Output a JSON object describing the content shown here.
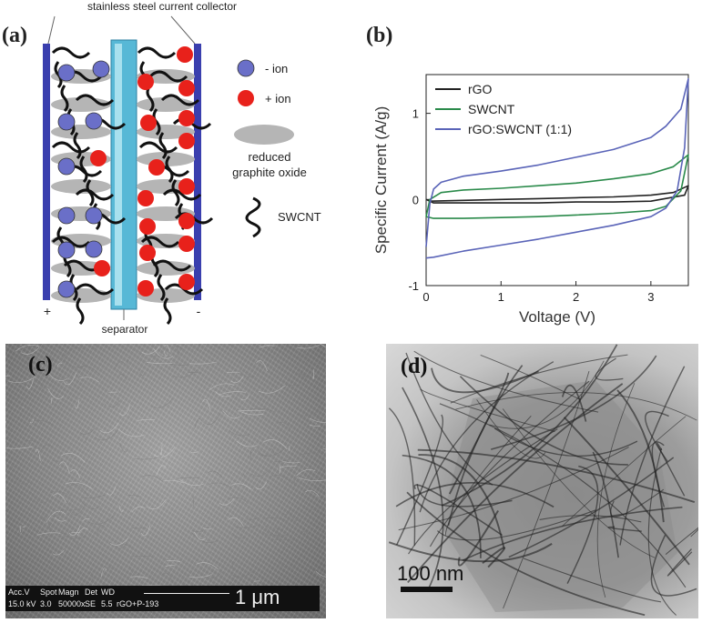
{
  "panel_a": {
    "label": "(a)",
    "collector_label": "stainless steel current collector",
    "separator_label": "separator",
    "plus_sign": "+",
    "minus_sign": "-",
    "legend": [
      {
        "text": "- ion",
        "icon": "negative-ion-sphere",
        "color": "#6a6fc8"
      },
      {
        "text": "+ ion",
        "icon": "positive-ion-sphere",
        "color": "#e8211b"
      },
      {
        "text": "reduced\ngraphite oxide",
        "icon": "graphite-oxide-ellipse",
        "color": "#b5b5b5"
      },
      {
        "text": "SWCNT",
        "icon": "swcnt-squiggle",
        "color": "#111111"
      }
    ],
    "legend_lines": [
      "- ion",
      "+ ion",
      "reduced",
      "graphite oxide",
      "SWCNT"
    ]
  },
  "panel_b": {
    "label": "(b)"
  },
  "chart_data": {
    "type": "line",
    "xlabel": "Voltage (V)",
    "ylabel": "Specific Current (A/g)",
    "xlim": [
      0,
      3.5
    ],
    "ylim": [
      -1,
      1.45
    ],
    "xticks": [
      0,
      1,
      2,
      3
    ],
    "yticks": [
      -1,
      0,
      1
    ],
    "legend_position": "top-right",
    "series": [
      {
        "name": "rGO",
        "color": "#222222",
        "forward": {
          "x": [
            0,
            0.05,
            0.5,
            1,
            1.5,
            2,
            2.5,
            3,
            3.3,
            3.5
          ],
          "y": [
            0,
            -0.02,
            -0.01,
            0,
            0.01,
            0.02,
            0.03,
            0.05,
            0.08,
            0.16
          ]
        },
        "reverse": {
          "x": [
            3.5,
            3.45,
            3,
            2.5,
            2,
            1.5,
            1,
            0.5,
            0.1,
            0
          ],
          "y": [
            0.16,
            0.05,
            -0.02,
            -0.03,
            -0.03,
            -0.04,
            -0.04,
            -0.04,
            -0.04,
            0
          ]
        }
      },
      {
        "name": "SWCNT",
        "color": "#2a8a4a",
        "forward": {
          "x": [
            0,
            0.05,
            0.2,
            0.5,
            1,
            1.5,
            2,
            2.5,
            3,
            3.3,
            3.5
          ],
          "y": [
            -0.2,
            0,
            0.08,
            0.11,
            0.13,
            0.16,
            0.19,
            0.24,
            0.3,
            0.38,
            0.52
          ]
        },
        "reverse": {
          "x": [
            3.5,
            3.4,
            3.2,
            3,
            2.5,
            2,
            1.5,
            1,
            0.5,
            0.1,
            0
          ],
          "y": [
            0.52,
            0.1,
            -0.08,
            -0.13,
            -0.16,
            -0.18,
            -0.2,
            -0.21,
            -0.22,
            -0.22,
            -0.2
          ]
        }
      },
      {
        "name": "rGO:SWCNT (1:1)",
        "color": "#5a64b8",
        "forward": {
          "x": [
            0,
            0.05,
            0.1,
            0.2,
            0.5,
            1,
            1.5,
            2,
            2.5,
            3,
            3.2,
            3.4,
            3.5
          ],
          "y": [
            -0.55,
            -0.05,
            0.12,
            0.2,
            0.27,
            0.33,
            0.4,
            0.49,
            0.58,
            0.72,
            0.85,
            1.05,
            1.4
          ]
        },
        "reverse": {
          "x": [
            3.5,
            3.45,
            3.35,
            3.2,
            3,
            2.5,
            2,
            1.5,
            1,
            0.5,
            0.1,
            0
          ],
          "y": [
            1.4,
            0.6,
            0.1,
            -0.1,
            -0.2,
            -0.3,
            -0.38,
            -0.46,
            -0.53,
            -0.6,
            -0.67,
            -0.68
          ]
        }
      }
    ]
  },
  "panel_c": {
    "label": "(c)",
    "info": {
      "acc_v": "Acc.V",
      "spot": "Spot",
      "magn": "Magn",
      "det": "Det",
      "wd": "WD",
      "acc_v_val": "15.0 kV",
      "spot_val": "3.0",
      "magn_val": "50000x",
      "det_val": "SE",
      "wd_val": "5.5",
      "sample": "rGO+P-193",
      "scale": "1 μm"
    }
  },
  "panel_d": {
    "label": "(d)",
    "scale": "100 nm"
  }
}
